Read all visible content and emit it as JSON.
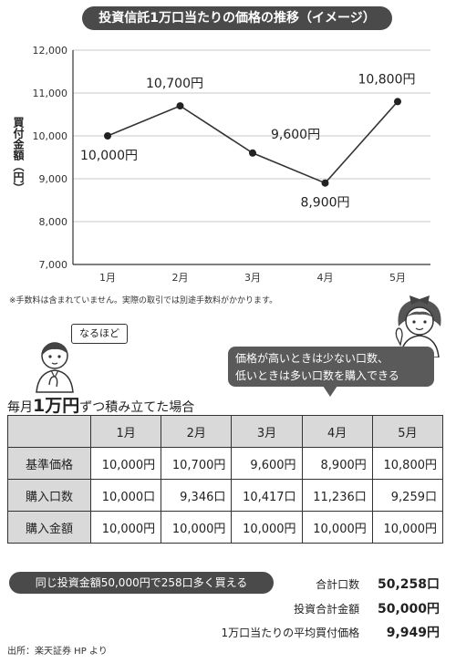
{
  "title": "投資信託1万口当たりの価格の推移（イメージ）",
  "chart_data": {
    "type": "line",
    "title": "投資信託1万口当たりの価格の推移（イメージ）",
    "categories": [
      "1月",
      "2月",
      "3月",
      "4月",
      "5月"
    ],
    "values": [
      10000,
      10700,
      9600,
      8900,
      10800
    ],
    "point_labels": [
      "10,000円",
      "10,700円",
      "9,600円",
      "8,900円",
      "10,800円"
    ],
    "yticks": [
      "7,000",
      "8,000",
      "9,000",
      "10,000",
      "11,000",
      "12,000"
    ],
    "ylim": [
      7000,
      12000
    ],
    "ylabel": "買付金額（円）",
    "xlabel": "",
    "grid": true,
    "line_color": "#333333"
  },
  "note": "※手数料は含まれていません。実際の取引では別途手数料がかかります。",
  "bubble_small": "なるほど",
  "bubble_big": {
    "line1": "価格が高いときは少ない口数、",
    "line2": "低いときは多い口数を購入できる"
  },
  "monthly_heading": {
    "pre": "毎月",
    "big": "1万円",
    "post": "ずつ積み立てた場合"
  },
  "table": {
    "headers": [
      "1月",
      "2月",
      "3月",
      "4月",
      "5月"
    ],
    "rows": [
      {
        "label": "基準価格",
        "cells": [
          "10,000円",
          "10,700円",
          "9,600円",
          "8,900円",
          "10,800円"
        ]
      },
      {
        "label": "購入口数",
        "cells": [
          "10,000口",
          "9,346口",
          "10,417口",
          "11,236口",
          "9,259口"
        ]
      },
      {
        "label": "購入金額",
        "cells": [
          "10,000円",
          "10,000円",
          "10,000円",
          "10,000円",
          "10,000円"
        ]
      }
    ]
  },
  "summary_pill": "同じ投資金額50,000円で258口多く買える",
  "summary": [
    {
      "label": "合計口数",
      "value": "50,258口"
    },
    {
      "label": "投資合計金額",
      "value": "50,000円"
    },
    {
      "label": "1万口当たりの平均買付価格",
      "value": "9,949円"
    }
  ],
  "source": "出所：楽天証券 HP より",
  "colors": {
    "dark": "#4a4a4a",
    "header_gray": "#d9d9d9",
    "grid": "#c8c8c8"
  }
}
